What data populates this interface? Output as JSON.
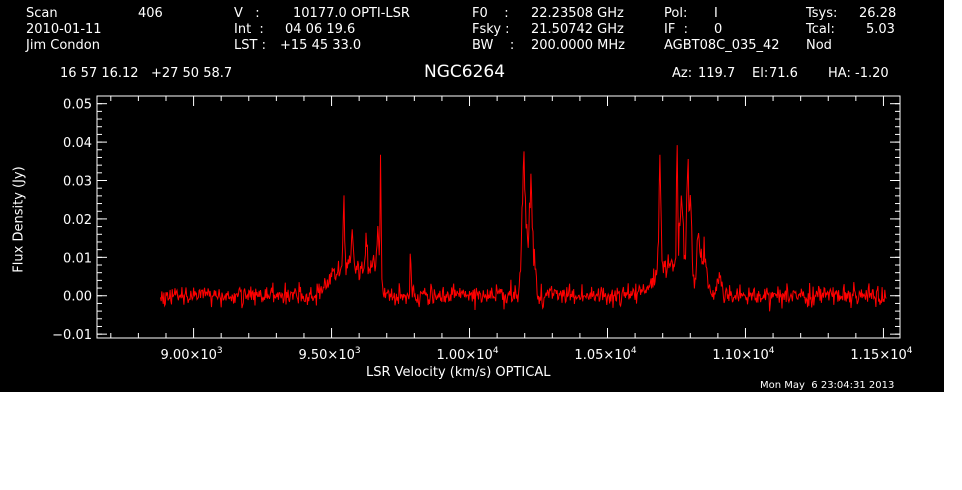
{
  "header": {
    "scan_label": "Scan",
    "scan_value": "406",
    "date": "2010-01-11",
    "observer": "Jim Condon",
    "v_label": "V   :",
    "v_value": "10177.0 OPTI-LSR",
    "int_label": "Int  :",
    "int_value": "04 06 19.6",
    "lst_label": "LST :",
    "lst_value": "+15 45 33.0",
    "f0_label": "F0    :",
    "f0_value": "22.23508 GHz",
    "fsky_label": "Fsky :",
    "fsky_value": "21.50742 GHz",
    "bw_label": "BW    :",
    "bw_value": "200.0000 MHz",
    "pol_label": "Pol:",
    "pol_value": "I",
    "if_label": "IF  :",
    "if_value": "0",
    "project": "AGBT08C_035_42",
    "tsys_label": "Tsys:",
    "tsys_value": "26.28",
    "tcal_label": "Tcal:",
    "tcal_value": "5.03",
    "procedure": "Nod",
    "coords": "16 57 16.12   +27 50 58.7",
    "source": "NGC6264",
    "az_label": "Az:",
    "az_value": "119.7",
    "el_label": "El:",
    "el_value": "71.6",
    "ha_label": "HA:",
    "ha_value": "-1.20",
    "timestamp": "Mon May  6 23:04:31 2013"
  },
  "colors": {
    "background": "#000000",
    "axes": "#ffffff",
    "trace": "#ff0000"
  },
  "chart_data": {
    "type": "line",
    "title": "NGC6264",
    "xlabel": "LSR Velocity (km/s) OPTICAL",
    "ylabel": "Flux Density (Jy)",
    "xlim": [
      8650,
      11560
    ],
    "ylim": [
      -0.011,
      0.052
    ],
    "grid": false,
    "x_ticks": [
      {
        "value": 9000,
        "mantissa": "9.00×10",
        "exp": "3"
      },
      {
        "value": 9500,
        "mantissa": "9.50×10",
        "exp": "3"
      },
      {
        "value": 10000,
        "mantissa": "1.00×10",
        "exp": "4"
      },
      {
        "value": 10500,
        "mantissa": "1.05×10",
        "exp": "4"
      },
      {
        "value": 11000,
        "mantissa": "1.10×10",
        "exp": "4"
      },
      {
        "value": 11500,
        "mantissa": "1.15×10",
        "exp": "4"
      }
    ],
    "y_ticks": [
      {
        "value": -0.01,
        "label": "−0.01"
      },
      {
        "value": 0.0,
        "label": "0.00"
      },
      {
        "value": 0.01,
        "label": "0.01"
      },
      {
        "value": 0.02,
        "label": "0.02"
      },
      {
        "value": 0.03,
        "label": "0.03"
      },
      {
        "value": 0.04,
        "label": "0.04"
      },
      {
        "value": 0.05,
        "label": "0.05"
      }
    ],
    "series": [
      {
        "color": "#ff0000",
        "x_range": [
          8880,
          11510
        ],
        "noise_rms": 0.0013,
        "continuum": 0.0,
        "peaks": [
          {
            "v": 9530,
            "a": 0.006,
            "w": 35
          },
          {
            "v": 9545,
            "a": 0.016,
            "w": 3
          },
          {
            "v": 9575,
            "a": 0.007,
            "w": 6
          },
          {
            "v": 9605,
            "a": 0.006,
            "w": 40
          },
          {
            "v": 9625,
            "a": 0.009,
            "w": 4
          },
          {
            "v": 9650,
            "a": 0.005,
            "w": 8
          },
          {
            "v": 9668,
            "a": 0.012,
            "w": 5
          },
          {
            "v": 9678,
            "a": 0.03,
            "w": 2
          },
          {
            "v": 9786,
            "a": 0.012,
            "w": 2
          },
          {
            "v": 10195,
            "a": 0.022,
            "w": 6
          },
          {
            "v": 10205,
            "a": 0.014,
            "w": 12
          },
          {
            "v": 10222,
            "a": 0.023,
            "w": 5
          },
          {
            "v": 10235,
            "a": 0.008,
            "w": 5
          },
          {
            "v": 10690,
            "a": 0.029,
            "w": 4
          },
          {
            "v": 10740,
            "a": 0.009,
            "w": 55
          },
          {
            "v": 10752,
            "a": 0.032,
            "w": 2
          },
          {
            "v": 10768,
            "a": 0.016,
            "w": 6
          },
          {
            "v": 10790,
            "a": 0.026,
            "w": 4
          },
          {
            "v": 10800,
            "a": 0.018,
            "w": 5
          },
          {
            "v": 10830,
            "a": 0.014,
            "w": 6
          },
          {
            "v": 10850,
            "a": 0.01,
            "w": 8
          },
          {
            "v": 10905,
            "a": 0.006,
            "w": 8
          }
        ]
      }
    ]
  }
}
